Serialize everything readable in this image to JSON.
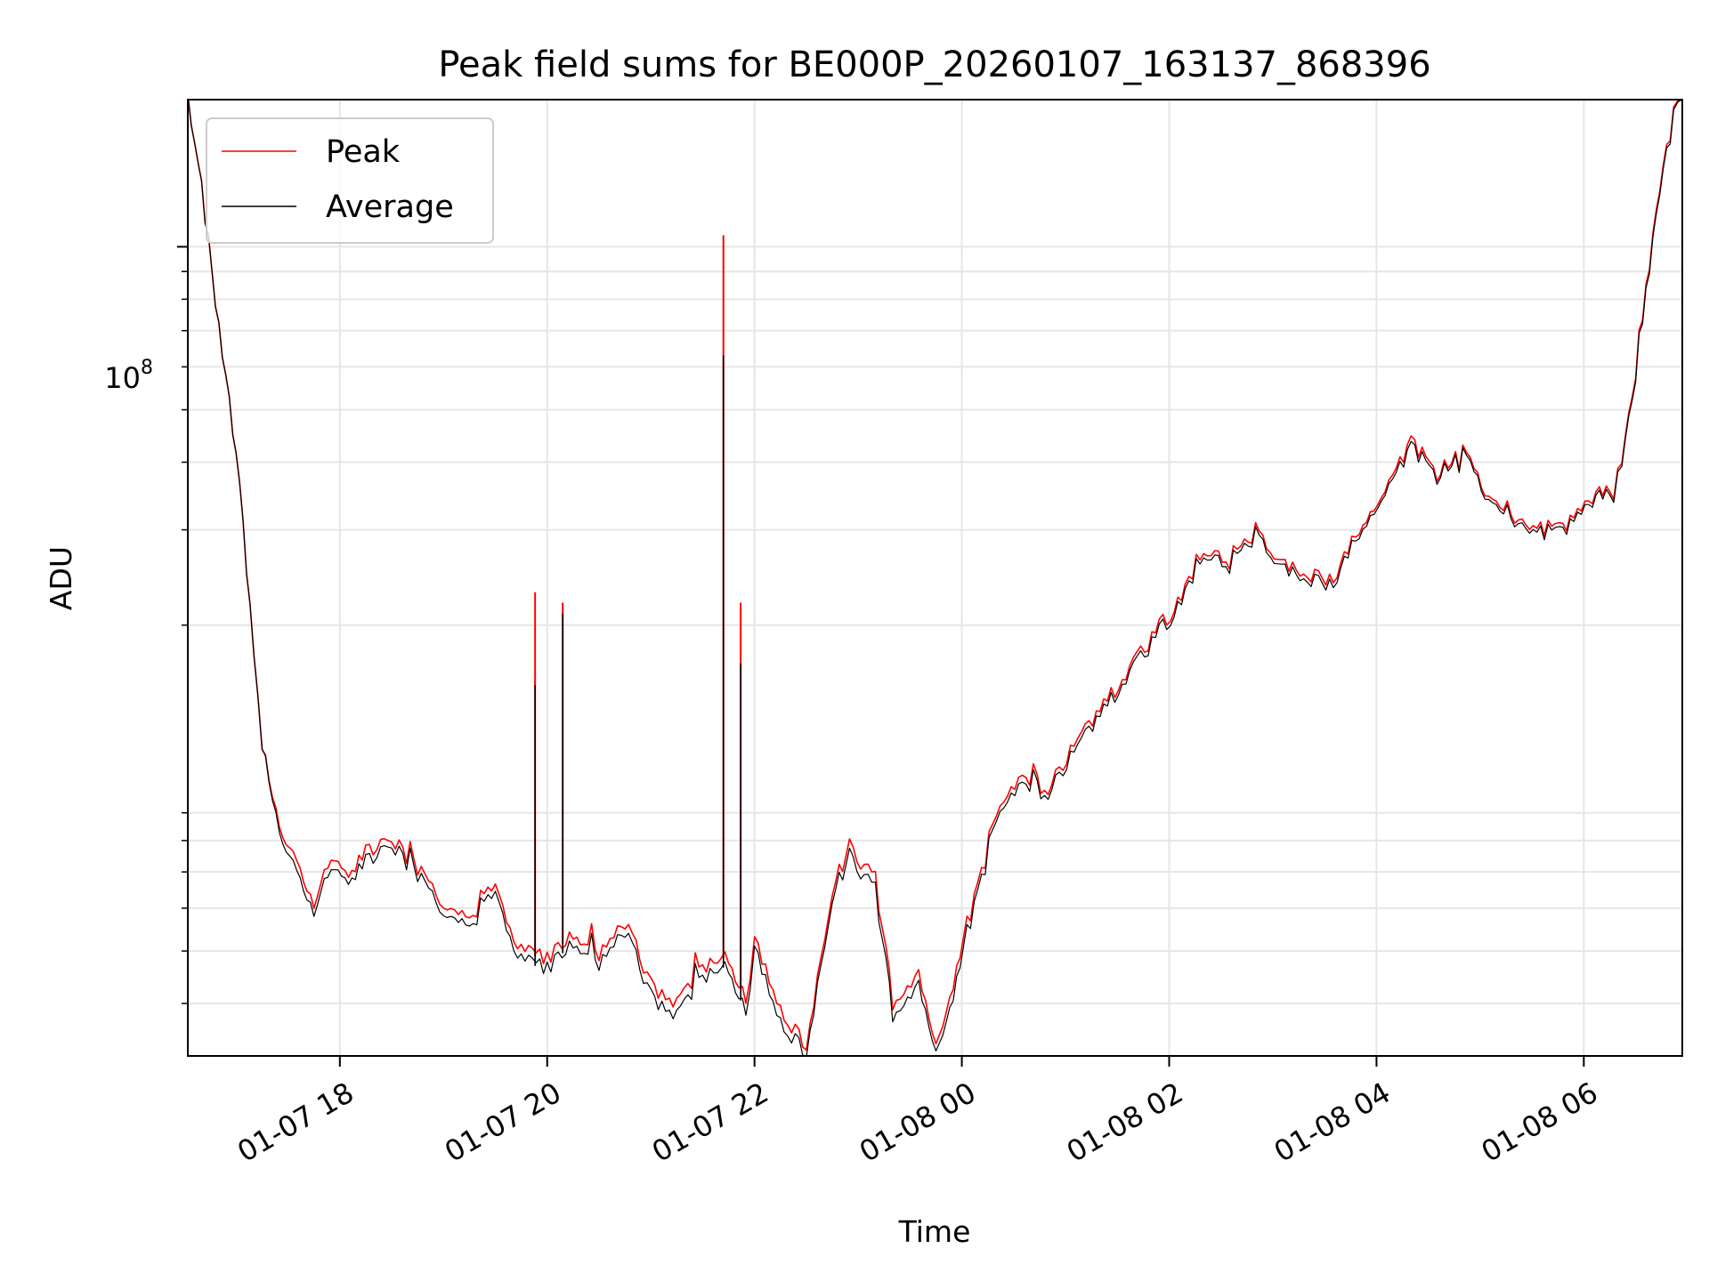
{
  "chart_data": {
    "type": "line",
    "title": "Peak field sums for BE000P_20260107_163137_868396",
    "xlabel": "Time",
    "ylabel": "ADU",
    "x_range": [
      "01-07 16:32",
      "01-08 06:57"
    ],
    "y_range": [
      3200000,
      187000000
    ],
    "y_scale": "log",
    "x_tick_labels": [
      "01-07 18",
      "01-07 20",
      "01-07 22",
      "01-08 00",
      "01-08 02",
      "01-08 04",
      "01-08 06"
    ],
    "x_ticks": [
      "01-07 18:00",
      "01-07 20:00",
      "01-07 22:00",
      "01-08 00:00",
      "01-08 02:00",
      "01-08 04:00",
      "01-08 06:00"
    ],
    "y_major_tick": {
      "value": 100000000,
      "base": "10",
      "exponent": "8"
    },
    "y_minor_ticks": [
      4000000,
      5000000,
      6000000,
      7000000,
      8000000,
      9000000,
      20000000,
      30000000,
      40000000,
      50000000,
      60000000,
      70000000,
      80000000,
      90000000,
      200000000
    ],
    "grid": true,
    "legend_position": "top-left",
    "series": [
      {
        "name": "Peak",
        "color": "#ff0000",
        "points": [
          [
            "01-07 16:32",
            187000000
          ],
          [
            "01-07 16:40",
            130000000
          ],
          [
            "01-07 16:50",
            70000000
          ],
          [
            "01-07 17:00",
            42000000
          ],
          [
            "01-07 17:08",
            22000000
          ],
          [
            "01-07 17:15",
            12000000
          ],
          [
            "01-07 17:25",
            8600000
          ],
          [
            "01-07 17:35",
            7300000
          ],
          [
            "01-07 17:45",
            6000000
          ],
          [
            "01-07 17:55",
            7600000
          ],
          [
            "01-07 18:05",
            6800000
          ],
          [
            "01-07 18:15",
            7600000
          ],
          [
            "01-07 18:30",
            8000000
          ],
          [
            "01-07 18:45",
            7100000
          ],
          [
            "01-07 19:00",
            6200000
          ],
          [
            "01-07 19:15",
            5800000
          ],
          [
            "01-07 19:30",
            6500000
          ],
          [
            "01-07 19:45",
            5000000
          ],
          [
            "01-07 20:00",
            4800000
          ],
          [
            "01-07 20:15",
            5400000
          ],
          [
            "01-07 20:30",
            4900000
          ],
          [
            "01-07 20:45",
            5700000
          ],
          [
            "01-07 21:00",
            4300000
          ],
          [
            "01-07 21:15",
            4000000
          ],
          [
            "01-07 21:30",
            4700000
          ],
          [
            "01-07 21:45",
            4900000
          ],
          [
            "01-07 21:55",
            4000000
          ],
          [
            "01-07 22:00",
            5200000
          ],
          [
            "01-07 22:15",
            3900000
          ],
          [
            "01-07 22:30",
            3300000
          ],
          [
            "01-07 22:45",
            6500000
          ],
          [
            "01-07 22:55",
            7800000
          ],
          [
            "01-07 23:10",
            6800000
          ],
          [
            "01-07 23:20",
            4000000
          ],
          [
            "01-07 23:35",
            4500000
          ],
          [
            "01-07 23:45",
            3300000
          ],
          [
            "01-07 23:55",
            4300000
          ],
          [
            "01-08 00:05",
            6200000
          ],
          [
            "01-08 00:20",
            9000000
          ],
          [
            "01-08 00:35",
            10500000
          ],
          [
            "01-08 00:50",
            10000000
          ],
          [
            "01-08 01:05",
            12000000
          ],
          [
            "01-08 01:20",
            14000000
          ],
          [
            "01-08 01:35",
            16000000
          ],
          [
            "01-08 01:50",
            19000000
          ],
          [
            "01-08 02:05",
            22000000
          ],
          [
            "01-08 02:20",
            28000000
          ],
          [
            "01-08 02:35",
            26000000
          ],
          [
            "01-08 02:50",
            30000000
          ],
          [
            "01-08 03:05",
            26000000
          ],
          [
            "01-08 03:20",
            25000000
          ],
          [
            "01-08 03:35",
            24000000
          ],
          [
            "01-08 03:50",
            30000000
          ],
          [
            "01-08 04:05",
            35000000
          ],
          [
            "01-08 04:20",
            44000000
          ],
          [
            "01-08 04:35",
            38000000
          ],
          [
            "01-08 04:50",
            42000000
          ],
          [
            "01-08 05:05",
            35000000
          ],
          [
            "01-08 05:20",
            32000000
          ],
          [
            "01-08 05:35",
            30000000
          ],
          [
            "01-08 05:50",
            31000000
          ],
          [
            "01-08 06:05",
            34000000
          ],
          [
            "01-08 06:15",
            36000000
          ],
          [
            "01-08 06:22",
            40000000
          ],
          [
            "01-08 06:32",
            65000000
          ],
          [
            "01-08 06:42",
            120000000
          ],
          [
            "01-08 06:52",
            175000000
          ],
          [
            "01-08 06:57",
            187000000
          ]
        ],
        "spikes": [
          [
            "01-07 19:53",
            23000000
          ],
          [
            "01-07 20:09",
            22000000
          ],
          [
            "01-07 21:42",
            105000000
          ],
          [
            "01-07 21:52",
            22000000
          ]
        ]
      },
      {
        "name": "Average",
        "color": "#000000",
        "points": [
          [
            "01-07 16:32",
            187000000
          ],
          [
            "01-07 16:40",
            130000000
          ],
          [
            "01-07 16:50",
            70000000
          ],
          [
            "01-07 17:00",
            42000000
          ],
          [
            "01-07 17:08",
            22000000
          ],
          [
            "01-07 17:15",
            12000000
          ],
          [
            "01-07 17:25",
            8400000
          ],
          [
            "01-07 17:35",
            7000000
          ],
          [
            "01-07 17:45",
            5800000
          ],
          [
            "01-07 17:55",
            7300000
          ],
          [
            "01-07 18:05",
            6600000
          ],
          [
            "01-07 18:15",
            7300000
          ],
          [
            "01-07 18:30",
            7800000
          ],
          [
            "01-07 18:45",
            6900000
          ],
          [
            "01-07 19:00",
            6000000
          ],
          [
            "01-07 19:15",
            5600000
          ],
          [
            "01-07 19:30",
            6300000
          ],
          [
            "01-07 19:45",
            4800000
          ],
          [
            "01-07 20:00",
            4600000
          ],
          [
            "01-07 20:15",
            5200000
          ],
          [
            "01-07 20:30",
            4700000
          ],
          [
            "01-07 20:45",
            5500000
          ],
          [
            "01-07 21:00",
            4100000
          ],
          [
            "01-07 21:15",
            3800000
          ],
          [
            "01-07 21:30",
            4500000
          ],
          [
            "01-07 21:45",
            4700000
          ],
          [
            "01-07 21:55",
            3800000
          ],
          [
            "01-07 22:00",
            5000000
          ],
          [
            "01-07 22:15",
            3700000
          ],
          [
            "01-07 22:30",
            3200000
          ],
          [
            "01-07 22:45",
            6300000
          ],
          [
            "01-07 22:55",
            7500000
          ],
          [
            "01-07 23:10",
            6500000
          ],
          [
            "01-07 23:20",
            3800000
          ],
          [
            "01-07 23:35",
            4300000
          ],
          [
            "01-07 23:45",
            3200000
          ],
          [
            "01-07 23:55",
            4100000
          ],
          [
            "01-08 00:05",
            6000000
          ],
          [
            "01-08 00:20",
            8800000
          ],
          [
            "01-08 00:35",
            10200000
          ],
          [
            "01-08 00:50",
            9800000
          ],
          [
            "01-08 01:05",
            11700000
          ],
          [
            "01-08 01:20",
            13700000
          ],
          [
            "01-08 01:35",
            15700000
          ],
          [
            "01-08 01:50",
            18600000
          ],
          [
            "01-08 02:05",
            21600000
          ],
          [
            "01-08 02:20",
            27500000
          ],
          [
            "01-08 02:35",
            25500000
          ],
          [
            "01-08 02:50",
            29500000
          ],
          [
            "01-08 03:05",
            25500000
          ],
          [
            "01-08 03:20",
            24500000
          ],
          [
            "01-08 03:35",
            23500000
          ],
          [
            "01-08 03:50",
            29500000
          ],
          [
            "01-08 04:05",
            34500000
          ],
          [
            "01-08 04:20",
            43000000
          ],
          [
            "01-08 04:35",
            37500000
          ],
          [
            "01-08 04:50",
            41500000
          ],
          [
            "01-08 05:05",
            34500000
          ],
          [
            "01-08 05:20",
            31500000
          ],
          [
            "01-08 05:35",
            29500000
          ],
          [
            "01-08 05:50",
            30500000
          ],
          [
            "01-08 06:05",
            33500000
          ],
          [
            "01-08 06:15",
            35500000
          ],
          [
            "01-08 06:22",
            39500000
          ],
          [
            "01-08 06:32",
            64000000
          ],
          [
            "01-08 06:42",
            118000000
          ],
          [
            "01-08 06:52",
            173000000
          ],
          [
            "01-08 06:57",
            187000000
          ]
        ],
        "spikes": [
          [
            "01-07 19:53",
            15500000
          ],
          [
            "01-07 20:09",
            21000000
          ],
          [
            "01-07 21:42",
            63000000
          ],
          [
            "01-07 21:52",
            17000000
          ]
        ]
      }
    ]
  }
}
